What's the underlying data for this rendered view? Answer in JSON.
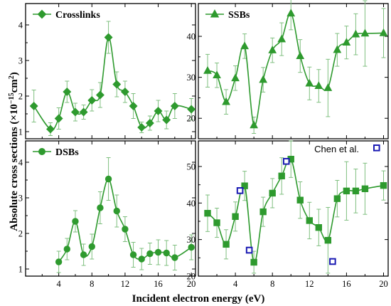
{
  "colors": {
    "series": "#2e9a2e",
    "error_bar": "#7fbf7f",
    "chen": "#1a1ab3",
    "axis": "#000000"
  },
  "axes": {
    "xlabel": "Incident electron energy (eV)",
    "ylabel_main": "Absolute cross sections (×10",
    "ylabel_sup1": "−15",
    "ylabel_mid": "cm",
    "ylabel_sup2": "2",
    "ylabel_end": ")"
  },
  "chart_data": [
    {
      "id": "crosslinks",
      "type": "line",
      "legend": "Crosslinks",
      "marker": "diamond",
      "legend_position": "top-left",
      "xlim": [
        0,
        20.5
      ],
      "ylim": [
        0.8,
        4.6
      ],
      "xticks": [],
      "yticks": [
        1,
        2,
        3,
        4
      ],
      "series": [
        {
          "x": [
            1,
            3,
            4,
            5,
            6,
            7,
            8,
            9,
            10,
            11,
            12,
            13,
            14,
            15,
            16,
            17,
            18,
            20
          ],
          "y": [
            1.72,
            1.07,
            1.37,
            2.12,
            1.55,
            1.55,
            1.88,
            2.03,
            3.65,
            2.33,
            2.12,
            1.72,
            1.12,
            1.24,
            1.58,
            1.33,
            1.72,
            1.63
          ],
          "err": [
            0.45,
            0.18,
            0.3,
            0.3,
            0.25,
            0.2,
            0.3,
            0.35,
            0.45,
            0.35,
            0.3,
            0.35,
            0.15,
            0.2,
            0.3,
            0.25,
            0.35,
            0.3
          ]
        }
      ]
    },
    {
      "id": "ssbs",
      "type": "line",
      "legend": "SSBs",
      "marker": "triangle",
      "legend_position": "top-left",
      "xlim": [
        0,
        20.5
      ],
      "ylim": [
        15,
        48
      ],
      "xticks": [],
      "yticks": [
        20,
        30,
        40
      ],
      "series": [
        {
          "x": [
            1,
            2,
            3,
            4,
            5,
            6,
            7,
            8,
            9,
            10,
            11,
            12,
            13,
            14,
            15,
            16,
            17,
            18,
            20
          ],
          "y": [
            31.6,
            30.5,
            24.0,
            29.8,
            37.6,
            18.3,
            29.4,
            36.6,
            39.3,
            45.6,
            35.2,
            28.5,
            27.9,
            27.4,
            36.7,
            38.5,
            40.5,
            40.7,
            40.8
          ],
          "err": [
            4,
            3,
            3,
            3,
            3,
            2,
            3,
            3,
            4,
            4,
            4,
            4,
            4,
            7,
            4,
            4,
            5,
            8,
            6
          ]
        }
      ]
    },
    {
      "id": "dsbs",
      "type": "line",
      "legend": "DSBs",
      "marker": "circle",
      "legend_position": "top-left",
      "xlim": [
        0,
        20.5
      ],
      "ylim": [
        0.8,
        4.6
      ],
      "xticks": [
        4,
        8,
        12,
        16,
        20
      ],
      "yticks": [
        1,
        2,
        3,
        4
      ],
      "series": [
        {
          "x": [
            4,
            5,
            6,
            7,
            8,
            9,
            10,
            11,
            12,
            13,
            14,
            15,
            16,
            17,
            18,
            20
          ],
          "y": [
            1.2,
            1.56,
            2.34,
            1.4,
            1.63,
            2.72,
            3.53,
            2.63,
            2.12,
            1.4,
            1.28,
            1.43,
            1.47,
            1.45,
            1.32,
            1.61
          ],
          "err": [
            0.3,
            0.3,
            0.3,
            0.3,
            0.35,
            0.45,
            0.6,
            0.45,
            0.35,
            0.35,
            0.3,
            0.3,
            0.35,
            0.35,
            0.35,
            0.35
          ]
        }
      ]
    },
    {
      "id": "total",
      "type": "line",
      "legend": "",
      "marker": "square",
      "xlim": [
        0,
        20.5
      ],
      "ylim": [
        20,
        57
      ],
      "xticks": [
        4,
        8,
        12,
        16,
        20
      ],
      "yticks": [
        20,
        30,
        40,
        50
      ],
      "series": [
        {
          "x": [
            1,
            2,
            3,
            4,
            5,
            6,
            7,
            8,
            9,
            10,
            11,
            12,
            13,
            14,
            15,
            16,
            17,
            18,
            20
          ],
          "y": [
            37.2,
            34.6,
            28.7,
            36.3,
            44.7,
            23.8,
            37.6,
            42.7,
            47.4,
            52.0,
            40.8,
            35.2,
            33.3,
            29.8,
            41.2,
            43.3,
            43.3,
            43.9,
            44.8
          ],
          "err": [
            5,
            4,
            4,
            4,
            4,
            3,
            4,
            4,
            5,
            5,
            5,
            5,
            5,
            9,
            5,
            8,
            6,
            7,
            4
          ]
        },
        {
          "name": "Chen et al.",
          "marker": "open-square",
          "x": [
            4.5,
            5.5,
            9.5,
            14.5
          ],
          "y": [
            43.4,
            27.1,
            51.4,
            24.0
          ]
        }
      ]
    }
  ]
}
